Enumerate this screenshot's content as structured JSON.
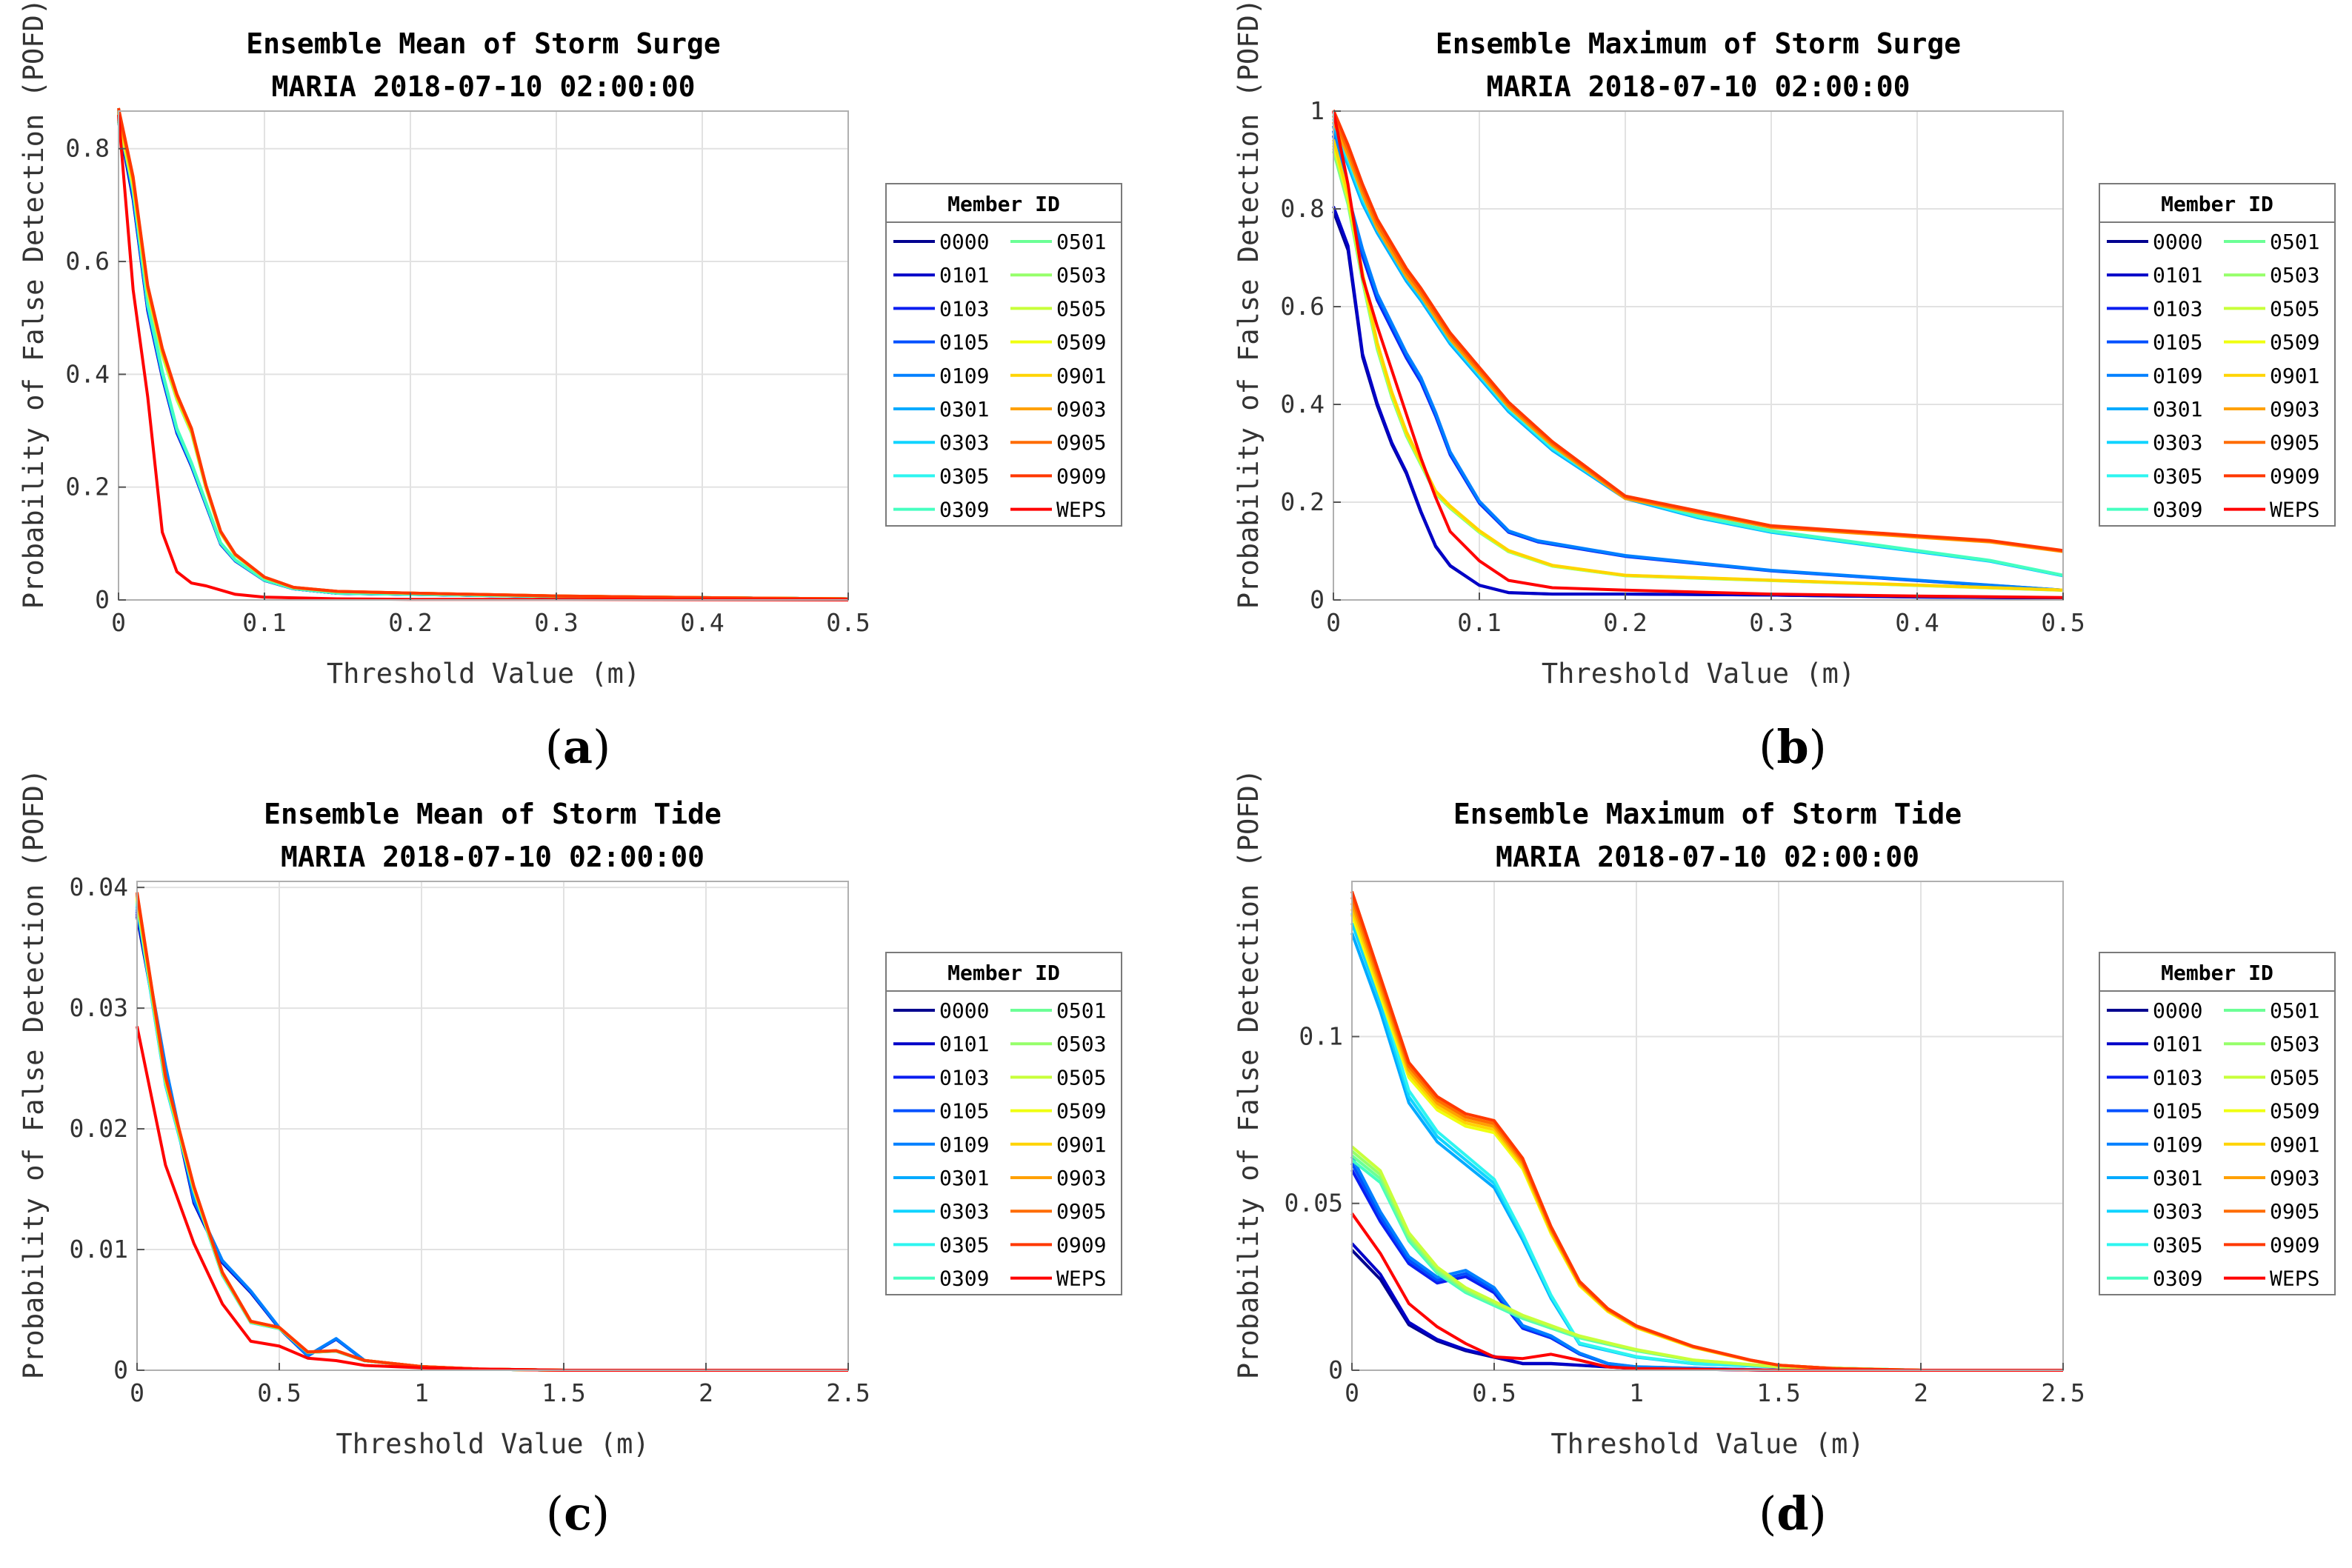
{
  "members": [
    "0000",
    "0101",
    "0103",
    "0105",
    "0109",
    "0301",
    "0303",
    "0305",
    "0309",
    "0501",
    "0503",
    "0505",
    "0509",
    "0901",
    "0903",
    "0905",
    "0909",
    "WEPS"
  ],
  "colors": {
    "0000": "#00008f",
    "0101": "#0000c8",
    "0103": "#0a1ef0",
    "0105": "#0050ff",
    "0109": "#0080ff",
    "0301": "#00aaff",
    "0303": "#10d4ff",
    "0305": "#2ef5f0",
    "0309": "#45ffc0",
    "0501": "#6cff96",
    "0503": "#96ff6a",
    "0505": "#c8ff3a",
    "0509": "#f0ff10",
    "0901": "#ffd400",
    "0903": "#ffa000",
    "0905": "#ff6c00",
    "0909": "#ff3800",
    "WEPS": "#ff0000"
  },
  "legend": {
    "title": "Member ID",
    "placement": "right"
  },
  "chart_data": [
    {
      "panel": "a",
      "type": "line",
      "title": [
        "Ensemble Mean of Storm Surge",
        "MARIA 2018-07-10 02:00:00"
      ],
      "xlabel": "Threshold Value (m)",
      "ylabel": "Probability of False Detection (POFD)",
      "xlim": [
        0,
        0.5
      ],
      "ylim": [
        0,
        0.8666
      ],
      "xticks": [
        0,
        0.1,
        0.2,
        0.3,
        0.4,
        0.5
      ],
      "xticklabels": [
        "0",
        "0.1",
        "0.2",
        "0.3",
        "0.4",
        "0.5"
      ],
      "yticks": [
        0,
        0.2,
        0.4,
        0.6,
        0.8
      ],
      "yticklabels": [
        "0",
        "0.2",
        "0.4",
        "0.6",
        "0.8"
      ],
      "grid": true,
      "groups": [
        {
          "members": [
            "0000",
            "0101",
            "0103",
            "0105",
            "0109",
            "0301",
            "0303",
            "0305",
            "0309"
          ],
          "jitter": 0.012,
          "x": [
            0,
            0.01,
            0.02,
            0.03,
            0.04,
            0.05,
            0.06,
            0.07,
            0.08,
            0.1,
            0.12,
            0.15,
            0.2,
            0.3,
            0.4,
            0.5
          ],
          "y": [
            0.86,
            0.72,
            0.52,
            0.4,
            0.3,
            0.24,
            0.17,
            0.1,
            0.07,
            0.035,
            0.02,
            0.012,
            0.01,
            0.006,
            0.004,
            0.002
          ]
        },
        {
          "members": [
            "0501",
            "0503",
            "0505",
            "0509",
            "0901",
            "0903",
            "0905",
            "0909"
          ],
          "jitter": 0.012,
          "x": [
            0,
            0.01,
            0.02,
            0.03,
            0.04,
            0.05,
            0.06,
            0.07,
            0.08,
            0.1,
            0.12,
            0.15,
            0.2,
            0.3,
            0.4,
            0.5
          ],
          "y": [
            0.86,
            0.74,
            0.55,
            0.44,
            0.36,
            0.3,
            0.2,
            0.12,
            0.08,
            0.04,
            0.022,
            0.015,
            0.012,
            0.007,
            0.004,
            0.002
          ]
        },
        {
          "members": [
            "WEPS"
          ],
          "jitter": 0,
          "x": [
            0,
            0.01,
            0.02,
            0.03,
            0.04,
            0.05,
            0.06,
            0.08,
            0.1,
            0.15,
            0.2,
            0.3,
            0.4,
            0.5
          ],
          "y": [
            0.86,
            0.55,
            0.36,
            0.12,
            0.05,
            0.03,
            0.025,
            0.01,
            0.005,
            0.002,
            0.001,
            0.001,
            0.0005,
            0
          ]
        }
      ]
    },
    {
      "panel": "b",
      "type": "line",
      "title": [
        "Ensemble Maximum of Storm Surge",
        "MARIA 2018-07-10 02:00:00"
      ],
      "xlabel": "Threshold Value (m)",
      "ylabel": "Probability of False Detection (POFD)",
      "xlim": [
        0,
        0.5
      ],
      "ylim": [
        0,
        1
      ],
      "xticks": [
        0,
        0.1,
        0.2,
        0.3,
        0.4,
        0.5
      ],
      "xticklabels": [
        "0",
        "0.1",
        "0.2",
        "0.3",
        "0.4",
        "0.5"
      ],
      "yticks": [
        0,
        0.2,
        0.4,
        0.6,
        0.8,
        1
      ],
      "yticklabels": [
        "0",
        "0.2",
        "0.4",
        "0.6",
        "0.8",
        "1"
      ],
      "grid": true,
      "groups": [
        {
          "members": [
            "0000",
            "0101"
          ],
          "jitter": 0.01,
          "x": [
            0,
            0.01,
            0.02,
            0.03,
            0.04,
            0.05,
            0.06,
            0.07,
            0.08,
            0.1,
            0.12,
            0.15,
            0.2,
            0.3,
            0.4,
            0.5
          ],
          "y": [
            0.8,
            0.72,
            0.5,
            0.4,
            0.32,
            0.26,
            0.18,
            0.11,
            0.07,
            0.03,
            0.015,
            0.012,
            0.012,
            0.01,
            0.006,
            0.004
          ]
        },
        {
          "members": [
            "0103",
            "0105",
            "0109"
          ],
          "jitter": 0.01,
          "x": [
            0,
            0.01,
            0.02,
            0.03,
            0.04,
            0.05,
            0.06,
            0.07,
            0.08,
            0.1,
            0.12,
            0.14,
            0.2,
            0.3,
            0.4,
            0.5
          ],
          "y": [
            0.96,
            0.82,
            0.71,
            0.62,
            0.56,
            0.5,
            0.45,
            0.38,
            0.3,
            0.2,
            0.14,
            0.12,
            0.09,
            0.06,
            0.04,
            0.02
          ]
        },
        {
          "members": [
            "0301",
            "0303",
            "0305",
            "0309"
          ],
          "jitter": 0.012,
          "x": [
            0,
            0.01,
            0.02,
            0.03,
            0.04,
            0.05,
            0.06,
            0.08,
            0.1,
            0.12,
            0.15,
            0.2,
            0.25,
            0.3,
            0.35,
            0.4,
            0.45,
            0.5
          ],
          "y": [
            0.98,
            0.9,
            0.82,
            0.76,
            0.71,
            0.66,
            0.62,
            0.53,
            0.46,
            0.39,
            0.31,
            0.21,
            0.17,
            0.14,
            0.12,
            0.1,
            0.08,
            0.05
          ]
        },
        {
          "members": [
            "0501",
            "0503",
            "0505",
            "0509",
            "0901"
          ],
          "jitter": 0.012,
          "x": [
            0,
            0.01,
            0.02,
            0.03,
            0.04,
            0.05,
            0.06,
            0.07,
            0.08,
            0.1,
            0.12,
            0.15,
            0.2,
            0.25,
            0.3,
            0.35,
            0.4,
            0.5
          ],
          "y": [
            0.93,
            0.82,
            0.66,
            0.52,
            0.42,
            0.34,
            0.28,
            0.22,
            0.19,
            0.14,
            0.1,
            0.07,
            0.05,
            0.045,
            0.04,
            0.035,
            0.03,
            0.02
          ]
        },
        {
          "members": [
            "0903",
            "0905",
            "0909"
          ],
          "jitter": 0.012,
          "x": [
            0,
            0.01,
            0.02,
            0.03,
            0.04,
            0.05,
            0.06,
            0.08,
            0.1,
            0.12,
            0.15,
            0.2,
            0.25,
            0.3,
            0.35,
            0.4,
            0.45,
            0.5
          ],
          "y": [
            0.99,
            0.92,
            0.84,
            0.77,
            0.72,
            0.67,
            0.63,
            0.54,
            0.47,
            0.4,
            0.32,
            0.21,
            0.18,
            0.15,
            0.14,
            0.13,
            0.12,
            0.1
          ]
        },
        {
          "members": [
            "WEPS"
          ],
          "jitter": 0,
          "x": [
            0,
            0.01,
            0.02,
            0.03,
            0.04,
            0.05,
            0.06,
            0.07,
            0.08,
            0.1,
            0.12,
            0.15,
            0.2,
            0.3,
            0.4,
            0.5
          ],
          "y": [
            1.0,
            0.85,
            0.66,
            0.56,
            0.47,
            0.38,
            0.29,
            0.21,
            0.14,
            0.08,
            0.04,
            0.025,
            0.02,
            0.012,
            0.008,
            0.005
          ]
        }
      ]
    },
    {
      "panel": "c",
      "type": "line",
      "title": [
        "Ensemble Mean of Storm Tide",
        "MARIA 2018-07-10 02:00:00"
      ],
      "xlabel": "Threshold Value (m)",
      "ylabel": "Probability of False Detection (POFD)",
      "xlim": [
        0,
        2.5
      ],
      "ylim": [
        0,
        0.0405
      ],
      "xticks": [
        0,
        0.5,
        1,
        1.5,
        2,
        2.5
      ],
      "xticklabels": [
        "0",
        "0.5",
        "1",
        "1.5",
        "2",
        "2.5"
      ],
      "yticks": [
        0,
        0.01,
        0.02,
        0.03,
        0.04
      ],
      "yticklabels": [
        "0",
        "0.01",
        "0.02",
        "0.03",
        "0.04"
      ],
      "grid": true,
      "groups": [
        {
          "members": [
            "0000",
            "0101",
            "0103",
            "0105",
            "0109"
          ],
          "jitter": 0.0004,
          "x": [
            0,
            0.1,
            0.2,
            0.3,
            0.4,
            0.5,
            0.6,
            0.7,
            0.8,
            1.0,
            1.2,
            1.5,
            2.0,
            2.5
          ],
          "y": [
            0.038,
            0.025,
            0.014,
            0.009,
            0.0065,
            0.0035,
            0.0012,
            0.0026,
            0.0008,
            0.0003,
            0.0001,
            0,
            0,
            0
          ]
        },
        {
          "members": [
            "0301",
            "0303",
            "0305",
            "0309",
            "0501",
            "0503",
            "0505",
            "0509",
            "0901",
            "0903",
            "0905",
            "0909"
          ],
          "jitter": 0.0006,
          "x": [
            0,
            0.1,
            0.2,
            0.3,
            0.4,
            0.5,
            0.6,
            0.7,
            0.8,
            1.0,
            1.2,
            1.5,
            2.0,
            2.5
          ],
          "y": [
            0.039,
            0.024,
            0.015,
            0.008,
            0.004,
            0.0035,
            0.0015,
            0.0016,
            0.0008,
            0.0003,
            0.0001,
            0,
            0,
            0
          ]
        },
        {
          "members": [
            "WEPS"
          ],
          "jitter": 0,
          "x": [
            0,
            0.1,
            0.2,
            0.3,
            0.4,
            0.5,
            0.6,
            0.7,
            0.8,
            1.0,
            1.2,
            1.5,
            2.0,
            2.5
          ],
          "y": [
            0.0285,
            0.017,
            0.0105,
            0.0055,
            0.0024,
            0.002,
            0.001,
            0.0008,
            0.0004,
            0.0002,
            0.0001,
            0,
            0,
            0
          ]
        }
      ]
    },
    {
      "panel": "d",
      "type": "line",
      "title": [
        "Ensemble Maximum of Storm Tide",
        "MARIA 2018-07-10 02:00:00"
      ],
      "xlabel": "Threshold Value (m)",
      "ylabel": "Probability of False Detection (POFD)",
      "xlim": [
        0,
        2.5
      ],
      "ylim": [
        0,
        0.1465
      ],
      "xticks": [
        0,
        0.5,
        1,
        1.5,
        2,
        2.5
      ],
      "xticklabels": [
        "0",
        "0.5",
        "1",
        "1.5",
        "2",
        "2.5"
      ],
      "yticks": [
        0,
        0.05,
        0.1
      ],
      "yticklabels": [
        "0",
        "0.05",
        "0.1"
      ],
      "grid": true,
      "groups": [
        {
          "members": [
            "0000",
            "0101"
          ],
          "jitter": 0.002,
          "x": [
            0,
            0.1,
            0.2,
            0.3,
            0.4,
            0.5,
            0.6,
            0.7,
            0.8,
            0.9,
            1.0,
            1.5,
            2.0,
            2.5
          ],
          "y": [
            0.037,
            0.028,
            0.014,
            0.009,
            0.006,
            0.004,
            0.002,
            0.002,
            0.0015,
            0.001,
            0.0005,
            0,
            0,
            0
          ]
        },
        {
          "members": [
            "0103",
            "0105",
            "0109"
          ],
          "jitter": 0.002,
          "x": [
            0,
            0.1,
            0.2,
            0.3,
            0.4,
            0.5,
            0.6,
            0.7,
            0.8,
            0.9,
            1.0,
            1.5,
            2.0,
            2.5
          ],
          "y": [
            0.062,
            0.046,
            0.033,
            0.027,
            0.029,
            0.024,
            0.013,
            0.01,
            0.005,
            0.002,
            0.001,
            0,
            0,
            0
          ]
        },
        {
          "members": [
            "0301",
            "0303",
            "0305"
          ],
          "jitter": 0.003,
          "x": [
            0,
            0.1,
            0.2,
            0.3,
            0.4,
            0.5,
            0.6,
            0.7,
            0.8,
            0.9,
            1.0,
            1.2,
            1.5,
            2.0,
            2.5
          ],
          "y": [
            0.134,
            0.11,
            0.082,
            0.07,
            0.063,
            0.056,
            0.04,
            0.022,
            0.008,
            0.006,
            0.004,
            0.002,
            0.001,
            0,
            0
          ]
        },
        {
          "members": [
            "0309",
            "0501",
            "0503",
            "0505"
          ],
          "jitter": 0.002,
          "x": [
            0,
            0.1,
            0.2,
            0.3,
            0.4,
            0.5,
            0.6,
            0.7,
            0.8,
            0.9,
            1.0,
            1.2,
            1.5,
            2.0,
            2.5
          ],
          "y": [
            0.065,
            0.058,
            0.04,
            0.03,
            0.024,
            0.02,
            0.016,
            0.013,
            0.01,
            0.008,
            0.006,
            0.003,
            0.001,
            0,
            0
          ]
        },
        {
          "members": [
            "0509",
            "0901",
            "0903",
            "0905",
            "0909"
          ],
          "jitter": 0.0035,
          "x": [
            0,
            0.1,
            0.2,
            0.3,
            0.4,
            0.5,
            0.6,
            0.7,
            0.8,
            0.9,
            1.0,
            1.2,
            1.4,
            1.5,
            1.7,
            2.0,
            2.5
          ],
          "y": [
            0.14,
            0.115,
            0.09,
            0.08,
            0.075,
            0.073,
            0.062,
            0.042,
            0.026,
            0.018,
            0.013,
            0.007,
            0.003,
            0.0015,
            0.0005,
            0,
            0
          ]
        },
        {
          "members": [
            "WEPS"
          ],
          "jitter": 0,
          "x": [
            0,
            0.1,
            0.2,
            0.3,
            0.4,
            0.5,
            0.6,
            0.7,
            0.8,
            0.9,
            1.0,
            1.5,
            2.0,
            2.5
          ],
          "y": [
            0.047,
            0.035,
            0.02,
            0.013,
            0.008,
            0.004,
            0.0035,
            0.0048,
            0.003,
            0.001,
            0.0005,
            0,
            0,
            0
          ]
        }
      ]
    }
  ],
  "panel_labels": [
    "(a)",
    "(b)",
    "(c)",
    "(d)"
  ]
}
